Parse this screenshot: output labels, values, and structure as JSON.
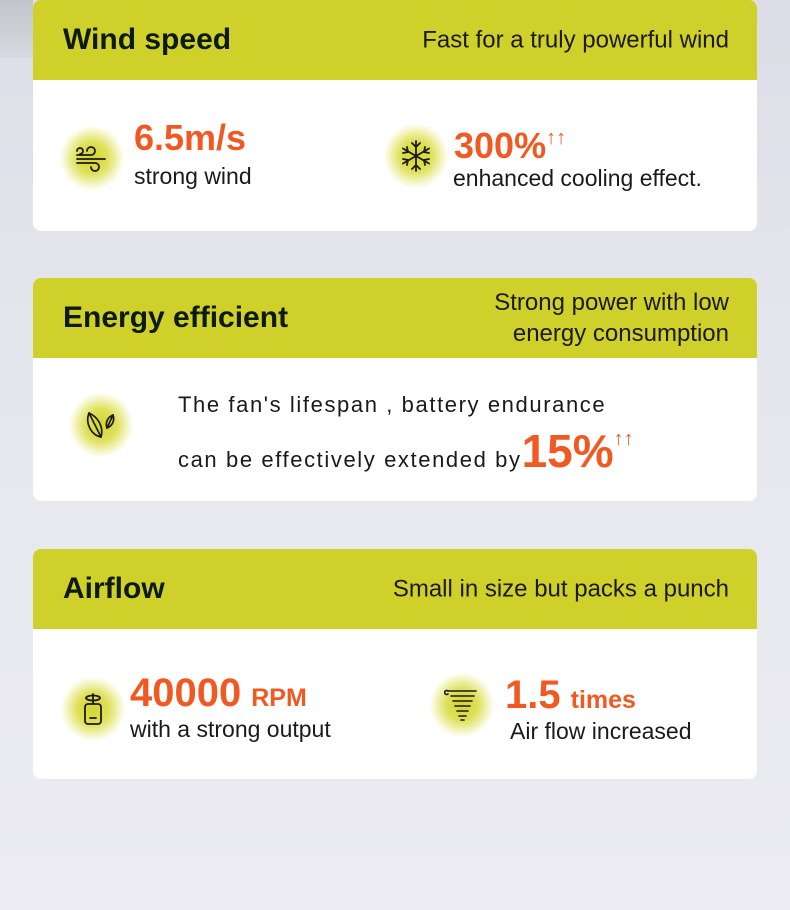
{
  "cards": [
    {
      "title": "Wind speed",
      "subtitle": "Fast for a truly powerful wind",
      "items": [
        {
          "icon": "wind-icon",
          "value": "6.5m/s",
          "label": "strong wind"
        },
        {
          "icon": "snowflake-icon",
          "value": "300%",
          "arrows": "↑↑",
          "label": "enhanced cooling effect."
        }
      ]
    },
    {
      "title": "Energy efficient",
      "subtitle_line1": "Strong power with low",
      "subtitle_line2": "energy consumption",
      "icon": "leaf-icon",
      "line1": "The fan's lifespan , battery endurance",
      "line2": "can be effectively extended by",
      "value": "15%",
      "arrows": "↑↑"
    },
    {
      "title": "Airflow",
      "subtitle": "Small in size but packs a punch",
      "items": [
        {
          "icon": "battery-rotor-icon",
          "value": "40000",
          "unit": "RPM",
          "label": "with a strong output"
        },
        {
          "icon": "tornado-icon",
          "value": "1.5",
          "unit": "times",
          "label": "Air flow increased"
        }
      ]
    }
  ],
  "colors": {
    "header": "#cfd02a",
    "accent": "#f05a22",
    "text": "#1a1a1a"
  }
}
